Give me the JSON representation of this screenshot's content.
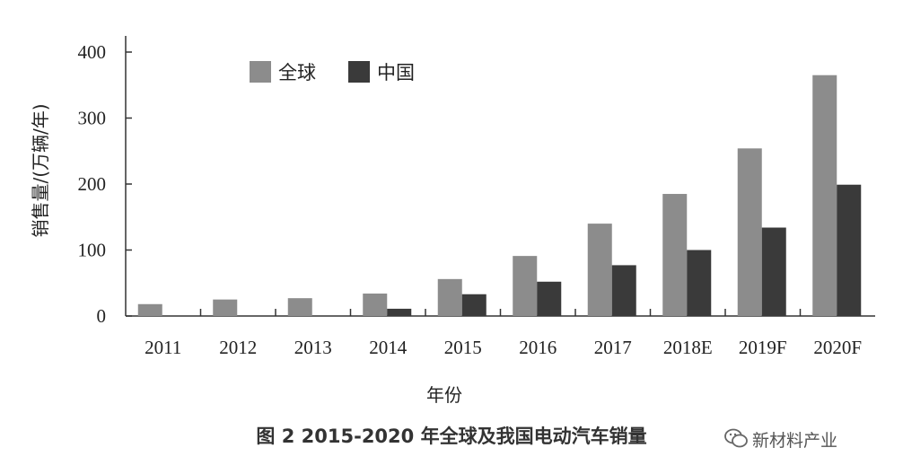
{
  "chart_data": {
    "type": "bar",
    "categories": [
      "2011",
      "2012",
      "2013",
      "2014",
      "2015",
      "2016",
      "2017",
      "2018E",
      "2019F",
      "2020F"
    ],
    "series": [
      {
        "name": "全球",
        "color": "#8c8c8c",
        "values": [
          18,
          25,
          27,
          34,
          56,
          91,
          140,
          185,
          254,
          365
        ]
      },
      {
        "name": "中国",
        "color": "#3a3a3a",
        "values": [
          null,
          null,
          null,
          11,
          33,
          52,
          77,
          100,
          134,
          199
        ]
      }
    ],
    "ylim": [
      0,
      400
    ],
    "yticks": [
      0,
      100,
      200,
      300,
      400
    ],
    "xlabel": "年份",
    "ylabel": "销售量/(万辆/年)",
    "legend": "top-left",
    "grid": false
  },
  "caption": "图 2  2015-2020 年全球及我国电动汽车销量",
  "watermark": "新材料产业",
  "watermark_icon": "wechat-icon"
}
